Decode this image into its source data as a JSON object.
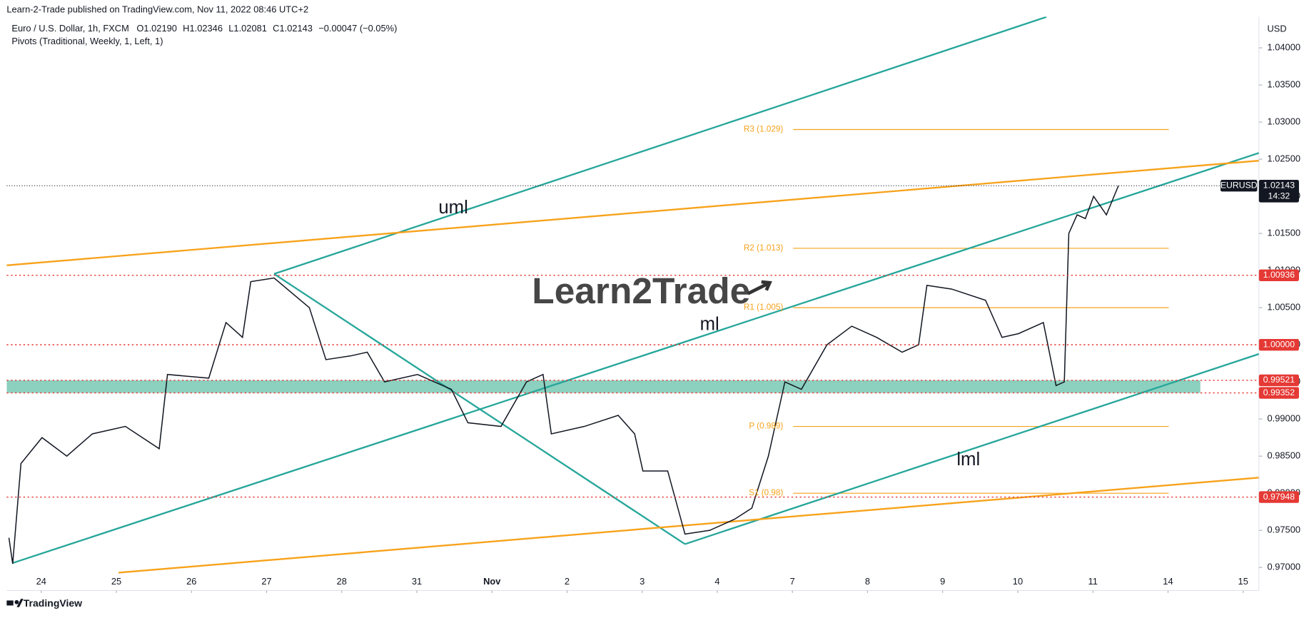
{
  "header": {
    "published": "Learn-2-Trade published on TradingView.com, Nov 11, 2022 08:46 UTC+2",
    "symbol": "Euro / U.S. Dollar, 1h, FXCM",
    "open": "O1.02190",
    "high": "H1.02346",
    "low": "L1.02081",
    "close": "C1.02143",
    "change": "−0.00047 (−0.05%)",
    "indicator": "Pivots (Traditional, Weekly, 1, Left, 1)",
    "watermark": "Learn2Trade",
    "footer": "TradingView"
  },
  "chart_data": {
    "type": "line",
    "color": "#131722",
    "y_unit": "USD",
    "x": [
      -0.43,
      -0.38,
      -0.27,
      0.01,
      0.34,
      0.68,
      1.12,
      1.57,
      1.68,
      2.23,
      2.46,
      2.68,
      2.79,
      3.1,
      3.57,
      3.79,
      4.12,
      4.34,
      4.57,
      5.01,
      5.46,
      5.68,
      6.12,
      6.46,
      6.68,
      6.79,
      7.23,
      7.68,
      7.9,
      8.01,
      8.34,
      8.57,
      8.9,
      9.23,
      9.46,
      9.68,
      9.9,
      10.12,
      10.46,
      10.79,
      11.12,
      11.46,
      11.68,
      11.79,
      12.12,
      12.57,
      12.79,
      13.01,
      13.34,
      13.51,
      13.62,
      13.68,
      13.79,
      13.9,
      14.01,
      14.18,
      14.34
    ],
    "values": [
      0.974,
      0.9705,
      0.984,
      0.9875,
      0.985,
      0.988,
      0.989,
      0.986,
      0.996,
      0.9955,
      1.003,
      1.001,
      1.0085,
      1.009,
      1.005,
      0.998,
      0.9985,
      0.999,
      0.995,
      0.996,
      0.994,
      0.9895,
      0.989,
      0.995,
      0.996,
      0.988,
      0.989,
      0.9905,
      0.988,
      0.983,
      0.983,
      0.9745,
      0.975,
      0.9765,
      0.978,
      0.985,
      0.995,
      0.994,
      1.0,
      1.0025,
      1.001,
      0.999,
      1.0,
      1.008,
      1.0075,
      1.006,
      1.001,
      1.0015,
      1.003,
      0.9945,
      0.995,
      1.015,
      1.0175,
      1.017,
      1.02,
      1.0175,
      1.02143
    ],
    "xlim": [
      -0.46,
      16.21
    ],
    "xticks": [
      {
        "value": 0,
        "label": "24"
      },
      {
        "value": 1,
        "label": "25"
      },
      {
        "value": 2,
        "label": "26"
      },
      {
        "value": 3,
        "label": "27"
      },
      {
        "value": 4,
        "label": "28"
      },
      {
        "value": 5,
        "label": "31"
      },
      {
        "value": 6,
        "label": "Nov"
      },
      {
        "value": 7,
        "label": "2"
      },
      {
        "value": 8,
        "label": "3"
      },
      {
        "value": 9,
        "label": "4"
      },
      {
        "value": 10,
        "label": "7"
      },
      {
        "value": 11,
        "label": "8"
      },
      {
        "value": 12,
        "label": "9"
      },
      {
        "value": 13,
        "label": "10"
      },
      {
        "value": 14,
        "label": "11"
      },
      {
        "value": 15,
        "label": "14"
      },
      {
        "value": 16,
        "label": "15"
      }
    ],
    "ylim": [
      0.9669,
      1.0442
    ],
    "yticks": [
      {
        "value": 0.97,
        "label": "0.97000"
      },
      {
        "value": 0.975,
        "label": "0.97500"
      },
      {
        "value": 0.98,
        "label": "0.98000"
      },
      {
        "value": 0.985,
        "label": "0.98500"
      },
      {
        "value": 0.99,
        "label": "0.99000"
      },
      {
        "value": 0.995,
        "label": "0.99500"
      },
      {
        "value": 1.0,
        "label": "1.00000"
      },
      {
        "value": 1.005,
        "label": "1.00500"
      },
      {
        "value": 1.01,
        "label": "1.01000"
      },
      {
        "value": 1.015,
        "label": "1.01500"
      },
      {
        "value": 1.02,
        "label": "1.02000"
      },
      {
        "value": 1.025,
        "label": "1.02500"
      },
      {
        "value": 1.03,
        "label": "1.03000"
      },
      {
        "value": 1.035,
        "label": "1.03500"
      },
      {
        "value": 1.04,
        "label": "1.04000"
      }
    ],
    "grid": false,
    "last_price": {
      "value": 1.02143,
      "label": "1.02143",
      "symbol": "EURUSD",
      "countdown": "14:32"
    },
    "levels": [
      {
        "value": 1.00936,
        "label": "1.00936"
      },
      {
        "value": 1.0,
        "label": "1.00000"
      },
      {
        "value": 0.99521,
        "label": "0.99521"
      },
      {
        "value": 0.99352,
        "label": "0.99352"
      },
      {
        "value": 0.97948,
        "label": "0.97948"
      }
    ],
    "level_color": "#e53935",
    "zone": [
      0.99352,
      0.99521
    ],
    "zone_color": "#7fcbb8",
    "pivot_x": [
      10.01,
      15.01
    ],
    "pivot_color": "#f7a21b",
    "pivots": [
      {
        "label": "R3 (1.029)",
        "value": 1.029
      },
      {
        "label": "R2 (1.013)",
        "value": 1.013
      },
      {
        "label": "R1 (1.005)",
        "value": 1.005
      },
      {
        "label": "P (0.989)",
        "value": 0.989
      },
      {
        "label": "S1 (0.98)",
        "value": 0.98
      }
    ],
    "trend_lines": [
      {
        "color": "#26a69a",
        "x": [
          3.1,
          13.38
        ],
        "y": [
          1.00955,
          1.04416
        ]
      },
      {
        "color": "#26a69a",
        "x": [
          -0.38,
          16.21
        ],
        "y": [
          0.9706,
          1.02584
        ]
      },
      {
        "color": "#26a69a",
        "x": [
          8.57,
          16.21
        ],
        "y": [
          0.97315,
          0.99876
        ]
      },
      {
        "color": "#26a69a",
        "x": [
          3.1,
          8.57
        ],
        "y": [
          1.00955,
          0.97315
        ]
      },
      {
        "color": "#f7a21b",
        "x": [
          -0.46,
          16.21
        ],
        "y": [
          1.0107,
          1.0248
        ]
      },
      {
        "color": "#f7a21b",
        "x": [
          1.03,
          16.21
        ],
        "y": [
          0.9693,
          0.9821
        ]
      }
    ],
    "annotations": [
      "uml",
      "ml",
      "lml"
    ]
  }
}
